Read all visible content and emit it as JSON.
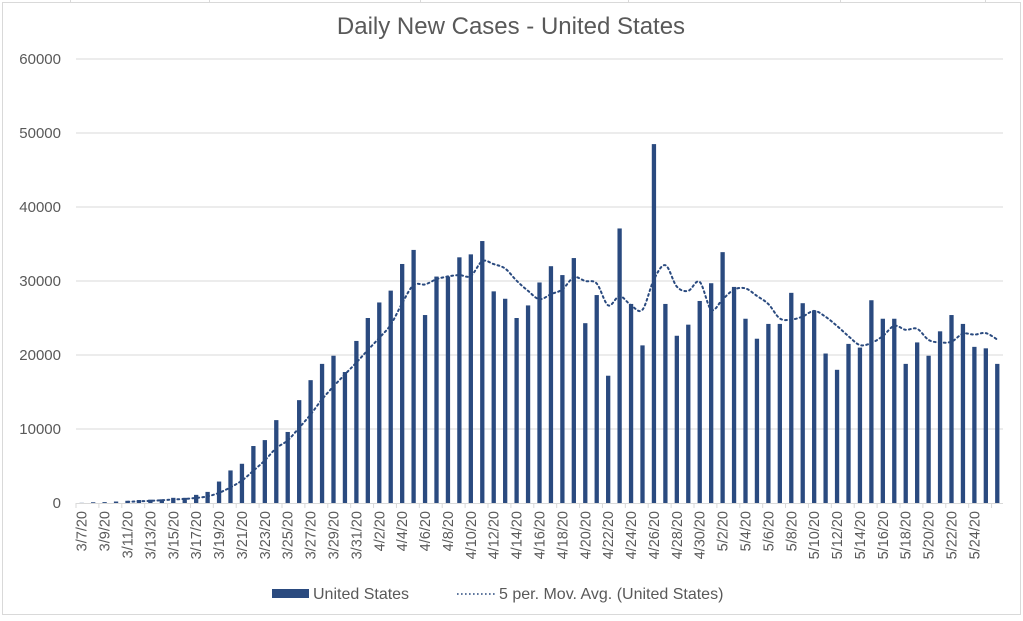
{
  "chart_data": {
    "type": "bar",
    "title": "Daily New Cases - United States",
    "xlabel": "",
    "ylabel": "",
    "ylim": [
      0,
      60000
    ],
    "yticks": [
      0,
      10000,
      20000,
      30000,
      40000,
      50000,
      60000
    ],
    "ytick_labels": [
      "0",
      "10000",
      "20000",
      "30000",
      "40000",
      "50000",
      "60000"
    ],
    "grid": true,
    "legend_position": "bottom",
    "categories": [
      "3/7/20",
      "3/8/20",
      "3/9/20",
      "3/10/20",
      "3/11/20",
      "3/12/20",
      "3/13/20",
      "3/14/20",
      "3/15/20",
      "3/16/20",
      "3/17/20",
      "3/18/20",
      "3/19/20",
      "3/20/20",
      "3/21/20",
      "3/22/20",
      "3/23/20",
      "3/24/20",
      "3/25/20",
      "3/26/20",
      "3/27/20",
      "3/28/20",
      "3/29/20",
      "3/30/20",
      "3/31/20",
      "4/1/20",
      "4/2/20",
      "4/3/20",
      "4/4/20",
      "4/5/20",
      "4/6/20",
      "4/7/20",
      "4/8/20",
      "4/9/20",
      "4/10/20",
      "4/11/20",
      "4/12/20",
      "4/13/20",
      "4/14/20",
      "4/15/20",
      "4/16/20",
      "4/17/20",
      "4/18/20",
      "4/19/20",
      "4/20/20",
      "4/21/20",
      "4/22/20",
      "4/23/20",
      "4/24/20",
      "4/25/20",
      "4/26/20",
      "4/27/20",
      "4/28/20",
      "4/29/20",
      "4/30/20",
      "5/1/20",
      "5/2/20",
      "5/3/20",
      "5/4/20",
      "5/5/20",
      "5/6/20",
      "5/7/20",
      "5/8/20",
      "5/9/20",
      "5/10/20",
      "5/11/20",
      "5/12/20",
      "5/13/20",
      "5/14/20",
      "5/15/20",
      "5/16/20",
      "5/17/20",
      "5/18/20",
      "5/19/20",
      "5/20/20",
      "5/21/20",
      "5/22/20",
      "5/23/20",
      "5/24/20",
      "5/25/20",
      "5/26/20"
    ],
    "xtick_labels_shown": [
      "3/7/20",
      "3/9/20",
      "3/11/20",
      "3/13/20",
      "3/15/20",
      "3/17/20",
      "3/19/20",
      "3/21/20",
      "3/23/20",
      "3/25/20",
      "3/27/20",
      "3/29/20",
      "3/31/20",
      "4/2/20",
      "4/4/20",
      "4/6/20",
      "4/8/20",
      "4/10/20",
      "4/12/20",
      "4/14/20",
      "4/16/20",
      "4/18/20",
      "4/20/20",
      "4/22/20",
      "4/24/20",
      "4/26/20",
      "4/28/20",
      "4/30/20",
      "5/2/20",
      "5/4/20",
      "5/6/20",
      "5/8/20",
      "5/10/20",
      "5/12/20",
      "5/14/20",
      "5/16/20",
      "5/18/20",
      "5/20/20",
      "5/22/20",
      "5/24/20"
    ],
    "series": [
      {
        "name": "United States",
        "type": "bar",
        "color": "#2a4a7f",
        "values": [
          20,
          100,
          120,
          200,
          300,
          400,
          450,
          500,
          700,
          700,
          1100,
          1500,
          2900,
          4400,
          5300,
          7700,
          8500,
          11200,
          9600,
          13900,
          16600,
          18800,
          19900,
          17700,
          21900,
          25000,
          27100,
          28700,
          32300,
          34200,
          25400,
          30600,
          30600,
          33200,
          33600,
          35400,
          28600,
          27600,
          25000,
          26700,
          29800,
          32000,
          30800,
          33100,
          24300,
          28100,
          17200,
          37100,
          26900,
          21300,
          48500,
          26900,
          22600,
          24100,
          27300,
          29700,
          33900,
          29200,
          24900,
          22200,
          24200,
          24200,
          28400,
          27000,
          26000,
          20200,
          18000,
          21500,
          21000,
          27400,
          24900,
          24900,
          18800,
          21700,
          19900,
          23200,
          25400,
          24200,
          21100,
          20900,
          18800
        ]
      },
      {
        "name": "5 per. Mov. Avg. (United States)",
        "type": "line",
        "style": "dotted",
        "color": "#2a4a7f",
        "period": 5
      }
    ]
  },
  "legend": {
    "items": [
      {
        "label": "United States",
        "marker": "bar"
      },
      {
        "label": "5 per. Mov. Avg. (United States)",
        "marker": "dotted-line"
      }
    ]
  }
}
